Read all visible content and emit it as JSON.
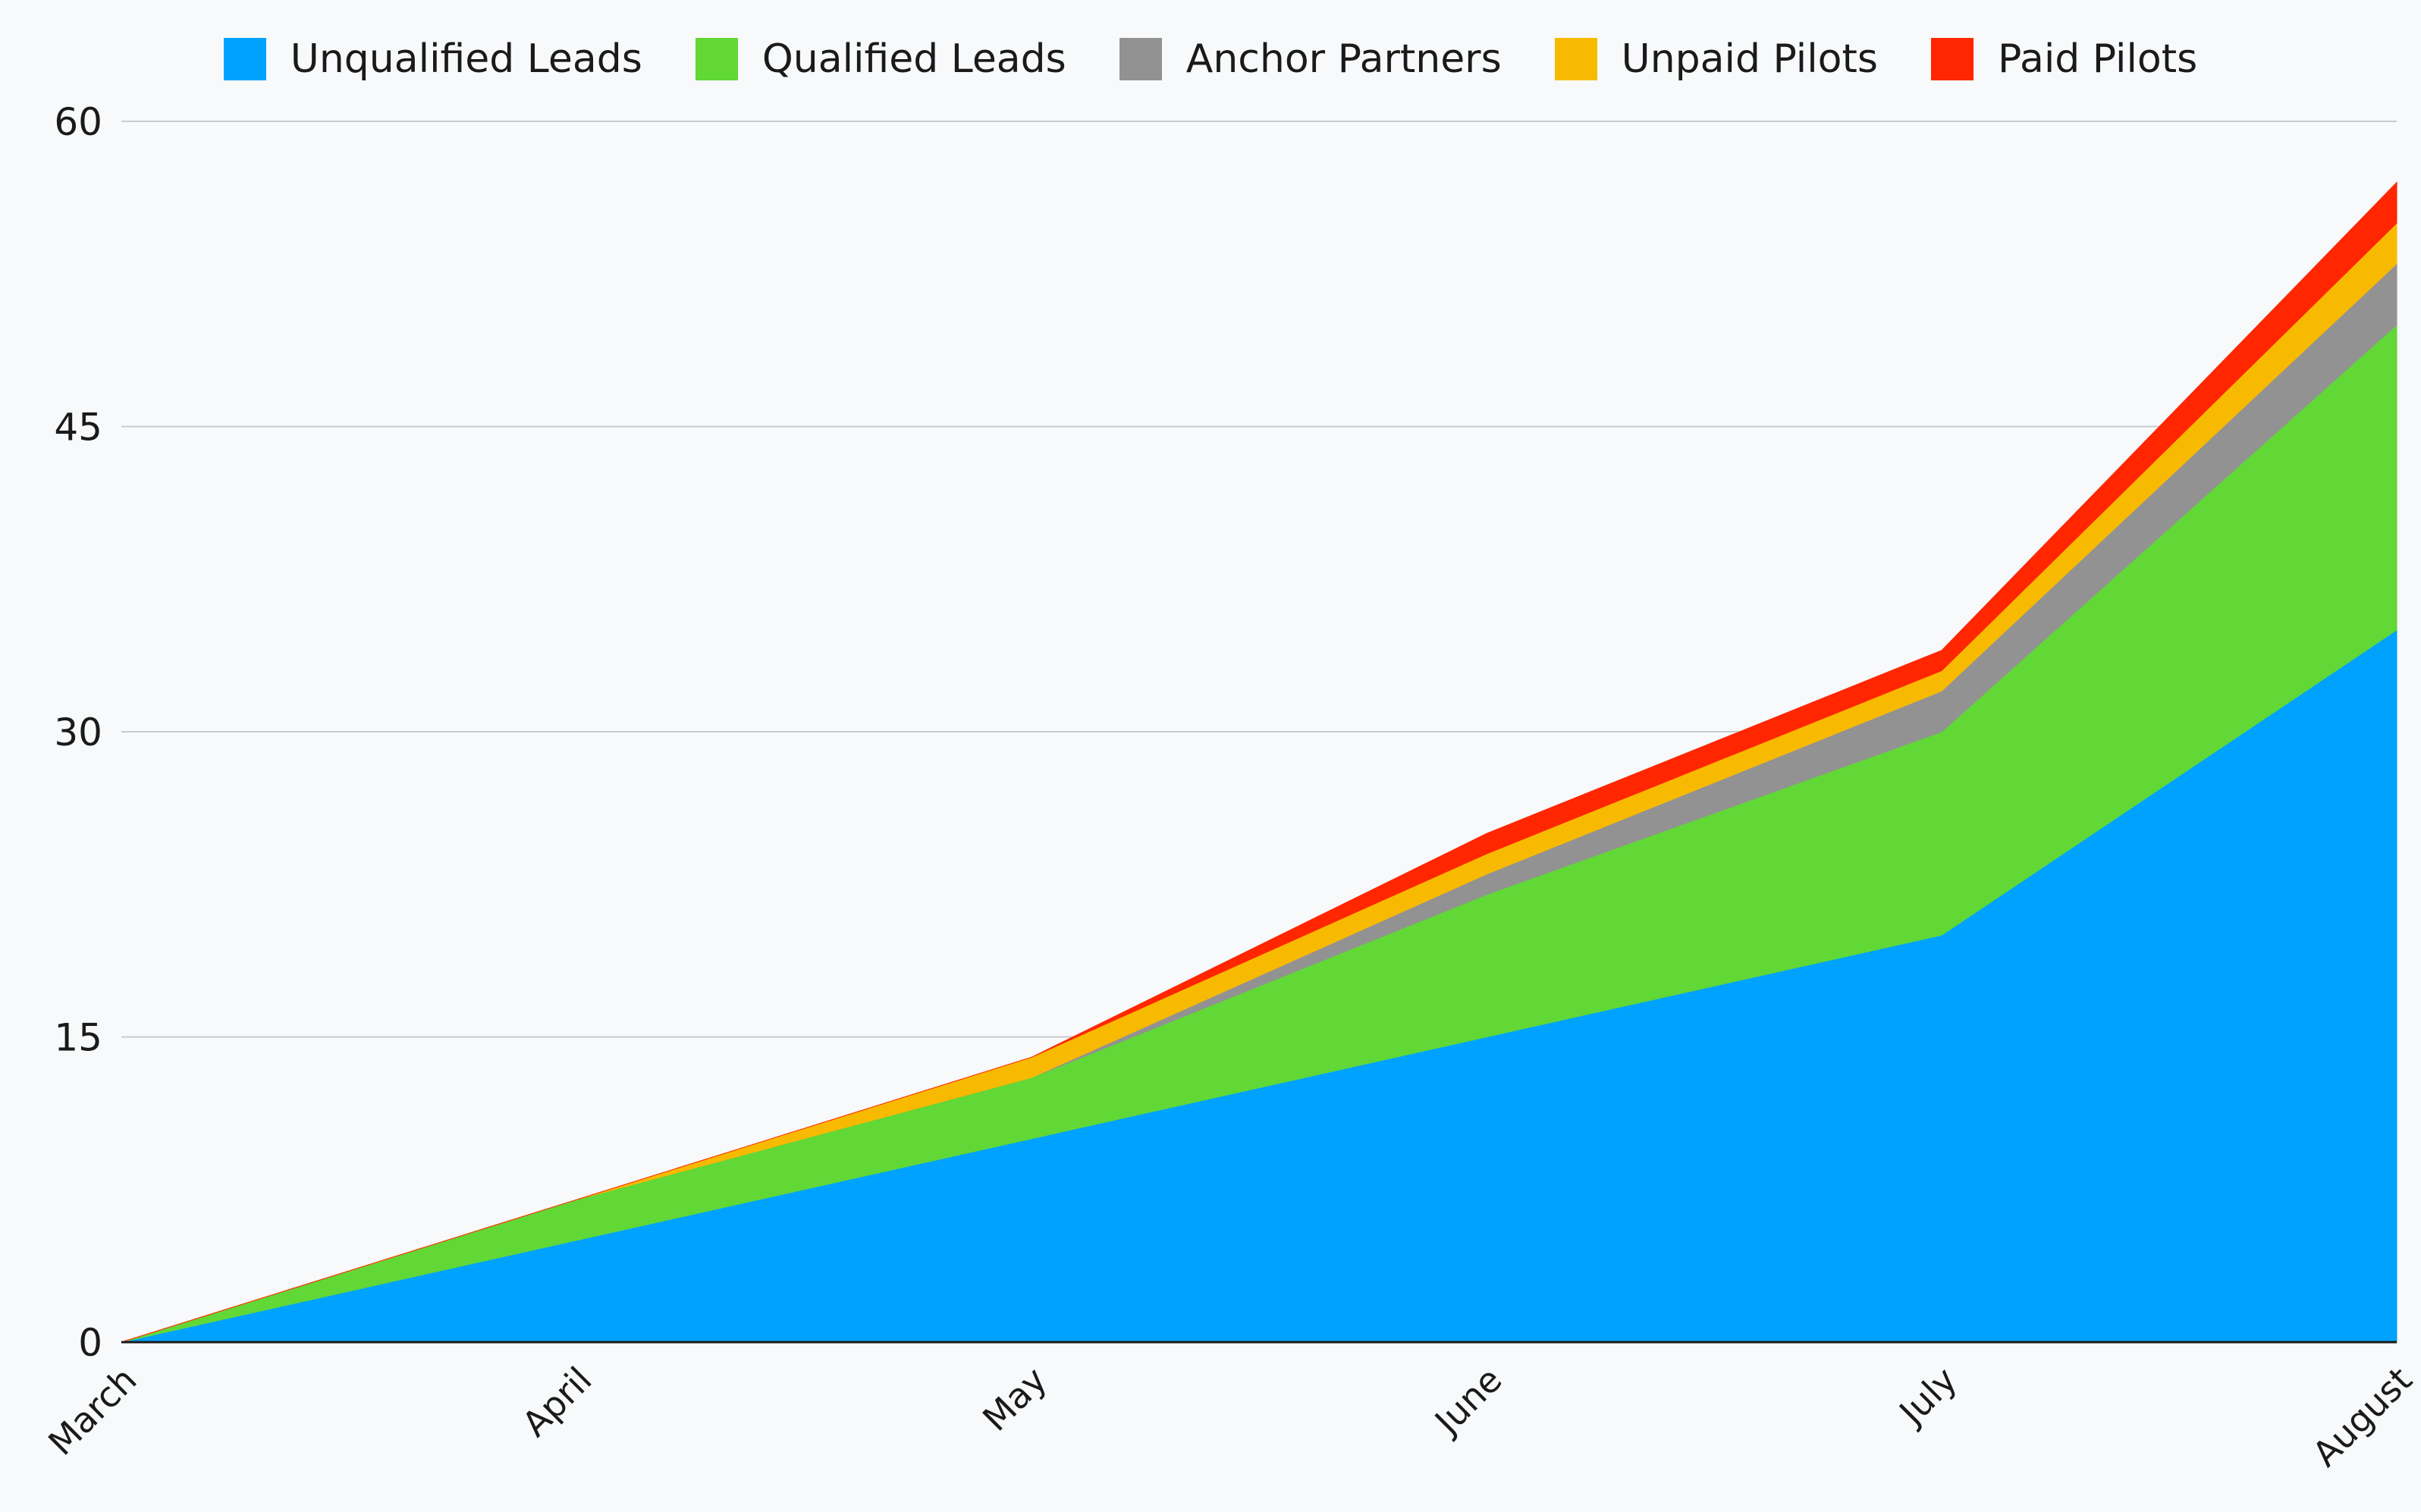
{
  "chart_data": {
    "type": "area",
    "stacked": true,
    "title": "",
    "xlabel": "",
    "ylabel": "",
    "categories": [
      "March",
      "April",
      "May",
      "June",
      "July",
      "August"
    ],
    "ylim": [
      0,
      60
    ],
    "yticks": [
      0,
      15,
      30,
      45,
      60
    ],
    "grid": true,
    "legend_position": "top-center",
    "series": [
      {
        "name": "Unqualified Leads",
        "color": "#00a2ff",
        "values": [
          0,
          5,
          10,
          15,
          20,
          35
        ]
      },
      {
        "name": "Qualified Leads",
        "color": "#61d836",
        "values": [
          0,
          2,
          3,
          7,
          10,
          15
        ]
      },
      {
        "name": "Anchor Partners",
        "color": "#929292",
        "values": [
          0,
          0,
          0,
          1,
          2,
          3
        ]
      },
      {
        "name": "Unpaid Pilots",
        "color": "#f8ba00",
        "values": [
          0,
          0,
          1,
          1,
          1,
          2
        ]
      },
      {
        "name": "Paid Pilots",
        "color": "#ff2600",
        "values": [
          0,
          0,
          0,
          1,
          1,
          2
        ]
      }
    ]
  }
}
